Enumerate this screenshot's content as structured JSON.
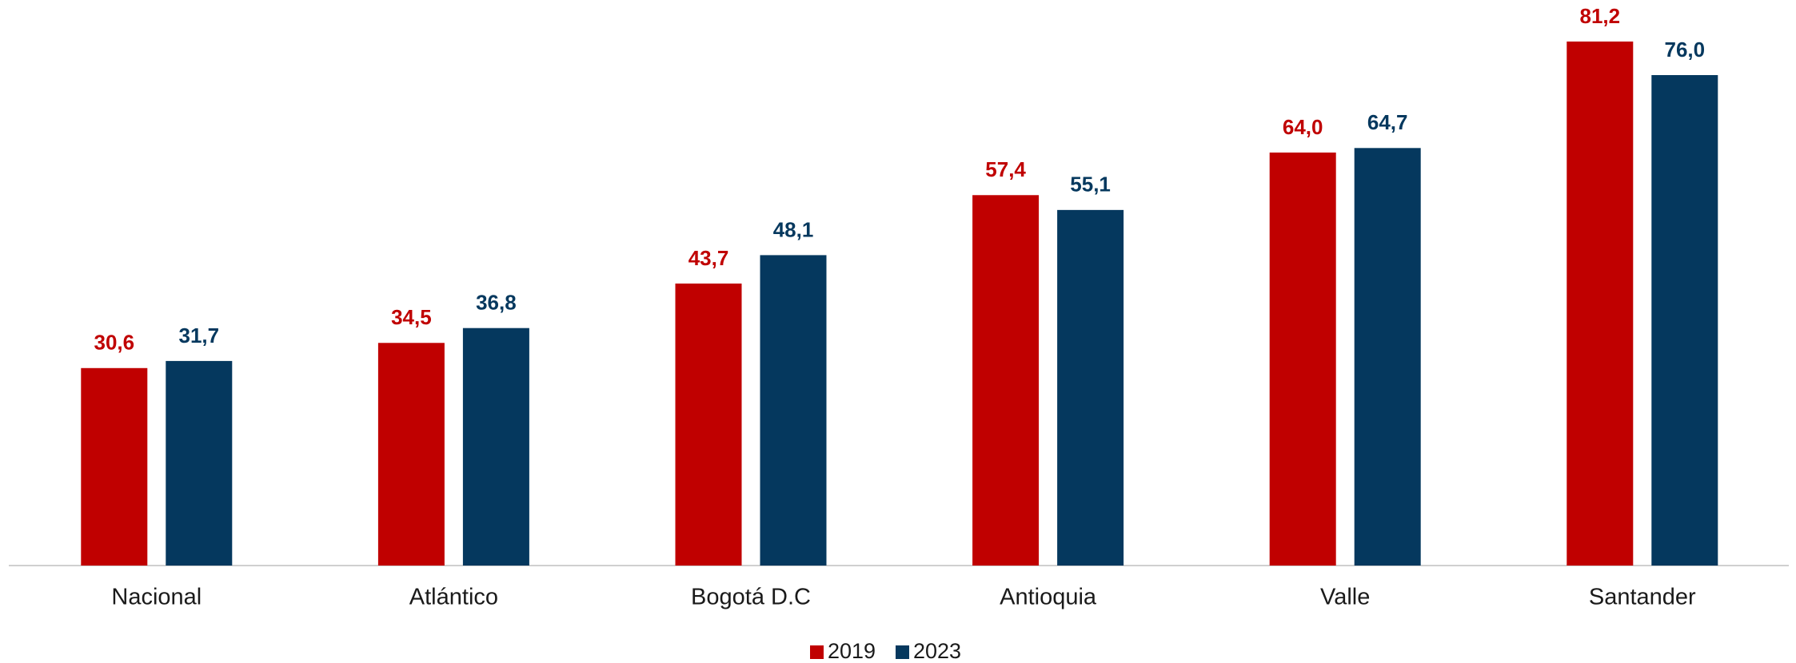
{
  "chart_data": {
    "type": "bar",
    "categories": [
      "Nacional",
      "Atlántico",
      "Bogotá D.C",
      "Antioquia",
      "Valle",
      "Santander"
    ],
    "series": [
      {
        "name": "2019",
        "color": "#c00000",
        "values": [
          30.6,
          34.5,
          43.7,
          57.4,
          64.0,
          81.2
        ],
        "value_labels": [
          "30,6",
          "34,5",
          "43,7",
          "57,4",
          "64,0",
          "81,2"
        ]
      },
      {
        "name": "2023",
        "color": "#05385e",
        "values": [
          31.7,
          36.8,
          48.1,
          55.1,
          64.7,
          76.0
        ],
        "value_labels": [
          "31,7",
          "36,8",
          "48,1",
          "55,1",
          "64,7",
          "76,0"
        ]
      }
    ],
    "legend": "bottom"
  }
}
